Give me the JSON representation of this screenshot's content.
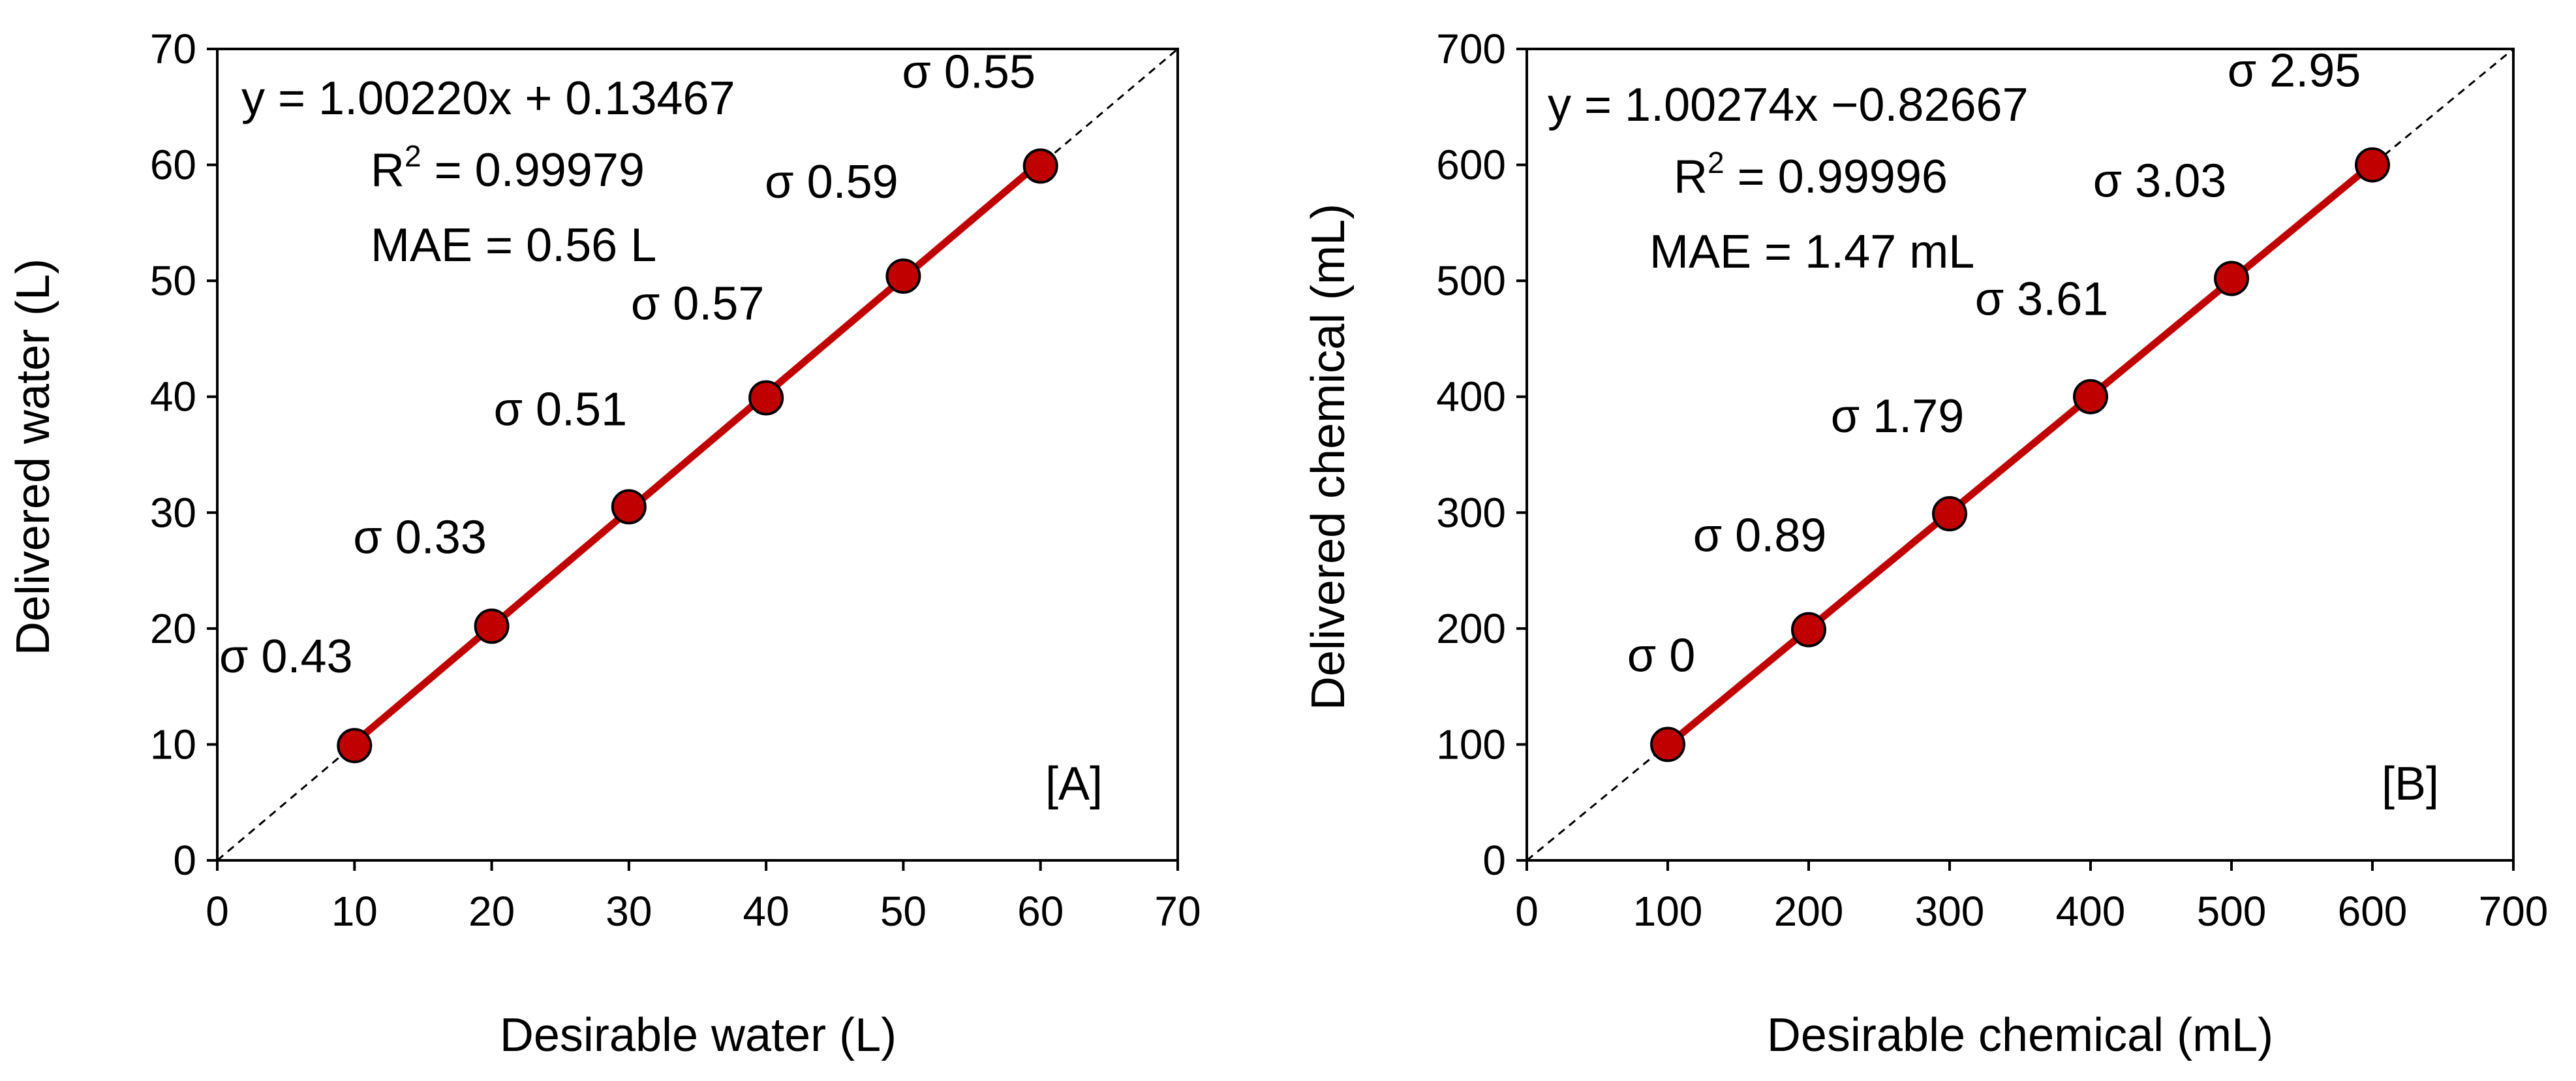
{
  "chart_data": [
    {
      "type": "scatter",
      "panel_label": "[A]",
      "xlabel": "Desirable water (L)",
      "ylabel": "Delivered water (L)",
      "xlim": [
        0,
        70
      ],
      "ylim": [
        0,
        70
      ],
      "xticks": [
        0,
        10,
        20,
        30,
        40,
        50,
        60,
        70
      ],
      "yticks": [
        0,
        10,
        20,
        30,
        40,
        50,
        60,
        70
      ],
      "x": [
        10,
        20,
        30,
        40,
        50,
        60
      ],
      "y": [
        9.9,
        20.2,
        30.5,
        39.9,
        50.4,
        59.9
      ],
      "sigma_labels": [
        "σ 0.43",
        "σ 0.33",
        "σ 0.51",
        "σ 0.57",
        "σ 0.59",
        "σ 0.55"
      ],
      "fit": {
        "slope": 1.0022,
        "intercept": 0.13467
      },
      "equation": "y = 1.00220x + 0.13467",
      "r2_prefix": "R",
      "r2_sup": "2",
      "r2_value": " = 0.99979",
      "mae": "MAE = 0.56 L",
      "colors": {
        "marker": "#c00000",
        "marker_edge": "#000000",
        "fit_line": "#c00000",
        "reference": "#000000"
      }
    },
    {
      "type": "scatter",
      "panel_label": "[B]",
      "xlabel": "Desirable chemical (mL)",
      "ylabel": "Delivered chemical (mL)",
      "xlim": [
        0,
        700
      ],
      "ylim": [
        0,
        700
      ],
      "xticks": [
        0,
        100,
        200,
        300,
        400,
        500,
        600,
        700
      ],
      "yticks": [
        0,
        100,
        200,
        300,
        400,
        500,
        600,
        700
      ],
      "x": [
        100,
        200,
        300,
        400,
        500,
        600
      ],
      "y": [
        100,
        199,
        299,
        400,
        502,
        600
      ],
      "sigma_labels": [
        "σ 0",
        "σ 0.89",
        "σ 1.79",
        "σ 3.61",
        "σ 3.03",
        "σ 2.95"
      ],
      "fit": {
        "slope": 1.00274,
        "intercept": -0.82667
      },
      "equation": "y = 1.00274x −0.82667",
      "r2_prefix": "R",
      "r2_sup": "2",
      "r2_value": " = 0.99996",
      "mae": "MAE = 1.47 mL",
      "colors": {
        "marker": "#c00000",
        "marker_edge": "#000000",
        "fit_line": "#c00000",
        "reference": "#000000"
      }
    }
  ]
}
